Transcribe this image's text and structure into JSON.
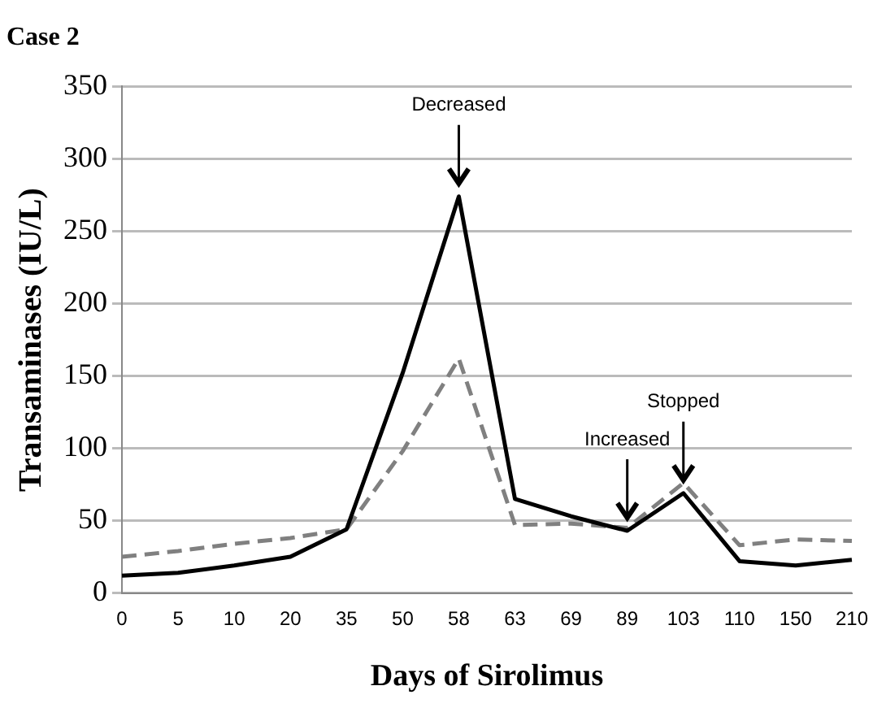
{
  "chart_data": {
    "type": "line",
    "title": "Case 2",
    "xlabel": "Days of Sirolimus",
    "ylabel": "Transaminases (IU/L)",
    "categories": [
      "0",
      "5",
      "10",
      "20",
      "35",
      "50",
      "58",
      "63",
      "69",
      "89",
      "103",
      "110",
      "150",
      "210"
    ],
    "series": [
      {
        "color": "#000000",
        "line_style": "solid",
        "values": [
          12,
          14,
          19,
          25,
          44,
          152,
          274,
          65,
          53,
          43,
          69,
          22,
          19,
          23
        ]
      },
      {
        "color": "#808080",
        "line_style": "dashed",
        "values": [
          25,
          29,
          34,
          38,
          44,
          98,
          162,
          47,
          48,
          45,
          76,
          33,
          37,
          36
        ]
      }
    ],
    "ylim": [
      0,
      350
    ],
    "yticks": [
      0,
      50,
      100,
      150,
      200,
      250,
      300,
      350
    ],
    "grid": "y",
    "legend": false,
    "marker": "none",
    "annotations": [
      {
        "text": "Decreased",
        "x": "58",
        "y": 274
      },
      {
        "text": "Increased",
        "x": "89",
        "y": 43
      },
      {
        "text": "Stopped",
        "x": "103",
        "y": 69
      }
    ]
  }
}
